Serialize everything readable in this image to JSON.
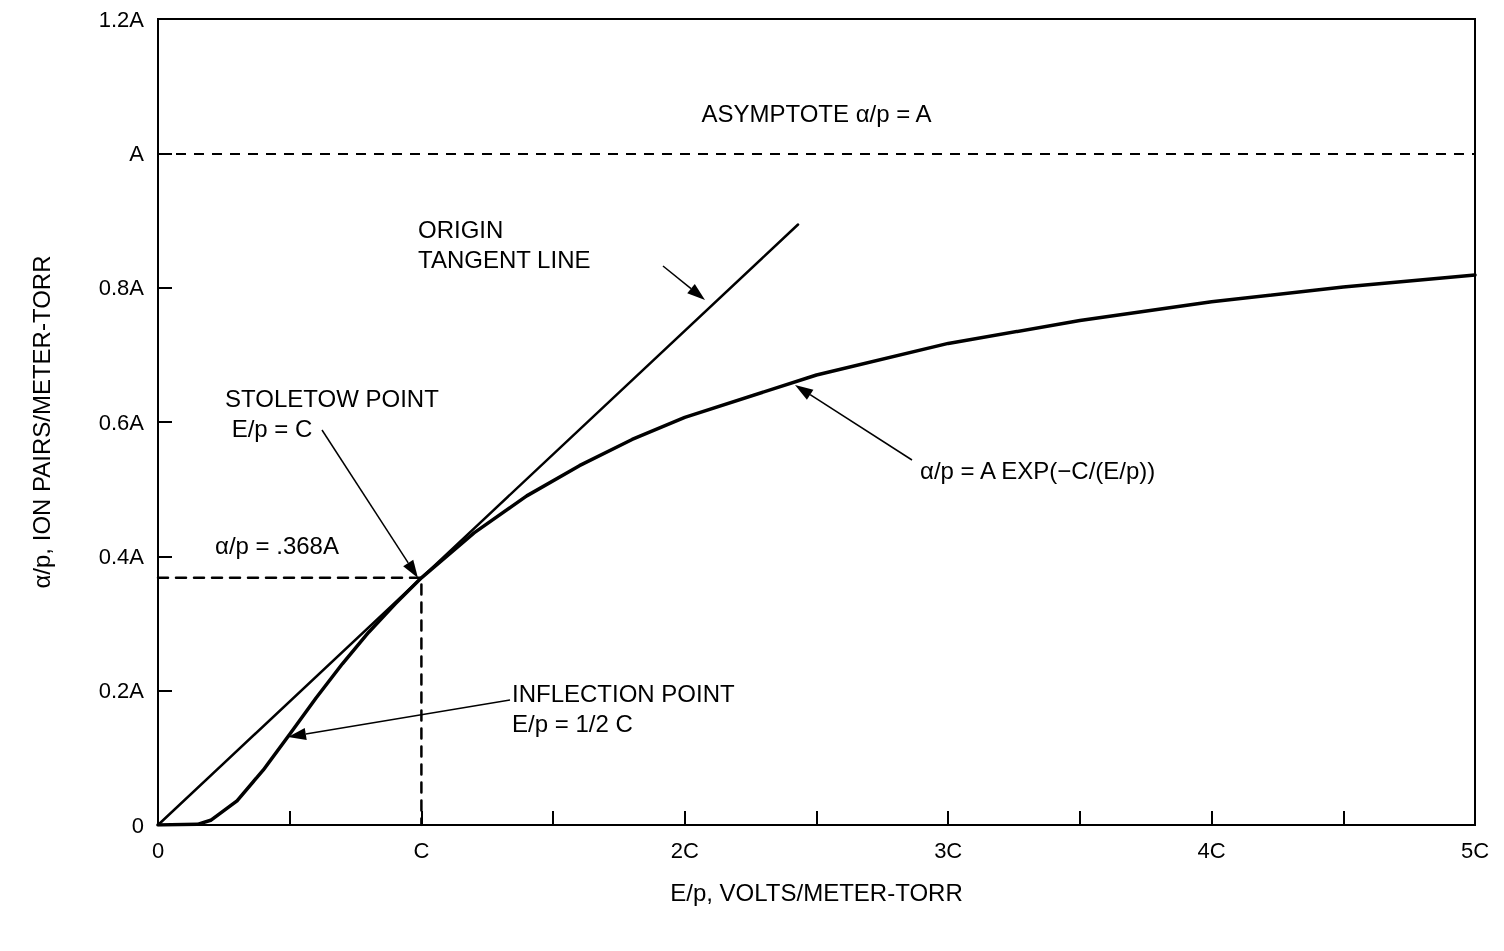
{
  "chart_data": {
    "type": "line",
    "xlabel": "E/p, VOLTS/METER-TORR",
    "ylabel": "α/p, ION PAIRS/METER-TORR",
    "xlim": [
      0,
      5
    ],
    "xticks": [
      0,
      {
        "value": 0.5,
        "label": null
      },
      {
        "value": 1,
        "label": "C"
      },
      {
        "value": 1.5,
        "label": null
      },
      {
        "value": 2,
        "label": "2C"
      },
      {
        "value": 2.5,
        "label": null
      },
      {
        "value": 3,
        "label": "3C"
      },
      {
        "value": 3.5,
        "label": null
      },
      {
        "value": 4,
        "label": "4C"
      },
      {
        "value": 4.5,
        "label": null
      },
      {
        "value": 5,
        "label": "5C"
      }
    ],
    "ylim": [
      0,
      1.2
    ],
    "yticks": [
      0,
      {
        "value": 0.2,
        "label": "0.2A"
      },
      {
        "value": 0.4,
        "label": "0.4A"
      },
      {
        "value": 0.6,
        "label": "0.6A"
      },
      {
        "value": 0.8,
        "label": "0.8A"
      },
      {
        "value": 1,
        "label": "A"
      },
      {
        "value": 1.2,
        "label": "1.2A"
      }
    ],
    "series": [
      {
        "color": "#000000",
        "x": [
          0,
          0.15,
          0.2,
          0.3,
          0.4,
          0.5,
          0.6,
          0.7,
          0.8,
          0.9,
          1,
          1.2,
          1.4,
          1.6,
          1.8,
          2,
          2.5,
          3,
          3.5,
          4,
          4.5,
          5
        ],
        "values": [
          0,
          0.001,
          0.007,
          0.036,
          0.082,
          0.135,
          0.189,
          0.24,
          0.287,
          0.329,
          0.368,
          0.435,
          0.49,
          0.535,
          0.574,
          0.607,
          0.67,
          0.717,
          0.751,
          0.779,
          0.801,
          0.819
        ],
        "line_style": "solid"
      },
      {
        "color": "#000000",
        "x": [
          0,
          2.43
        ],
        "values": [
          0,
          0.894
        ],
        "line_style": "solid"
      },
      {
        "color": "#000000",
        "x": [
          0,
          1,
          1
        ],
        "values": [
          0.368,
          0.368,
          0
        ],
        "line_style": "dashed"
      }
    ],
    "ref_lines": [
      {
        "axis": "y",
        "value": 1,
        "label": "ASYMPTOTE α/p = A",
        "line_style": "dashed",
        "color": "#000000"
      }
    ],
    "annotations": [
      "ORIGIN TANGENT LINE",
      "STOLETOW POINT E/p = C",
      "α/p = .368A",
      "α/p = A EXP(−C/(E/p))",
      "INFLECTION POINT E/p = 1/2 C"
    ],
    "grid": false,
    "marker": "none"
  }
}
